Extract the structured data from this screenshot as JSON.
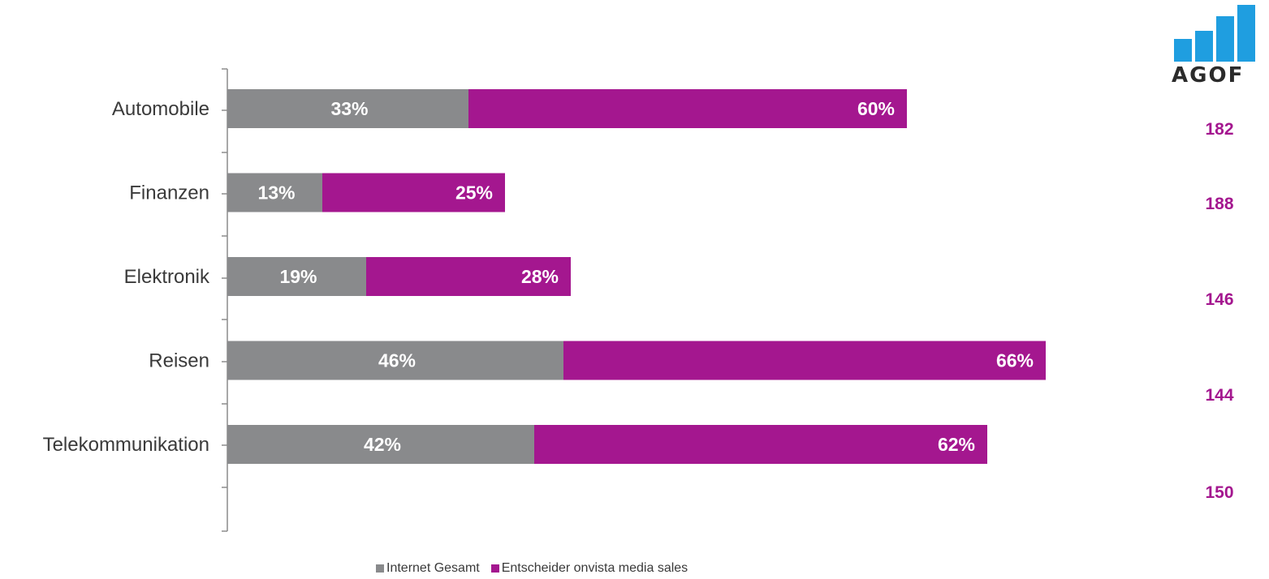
{
  "logo": {
    "text": "AGOF",
    "color": "#1f9ee0"
  },
  "chart_data": {
    "type": "bar",
    "orientation": "horizontal",
    "stacked": true,
    "categories": [
      "Automobile",
      "Finanzen",
      "Elektronik",
      "Reisen",
      "Telekommunikation"
    ],
    "series": [
      {
        "name": "Internet Gesamt",
        "color": "#898a8c",
        "values": [
          33,
          13,
          19,
          46,
          42
        ],
        "labels": [
          "33%",
          "13%",
          "19%",
          "46%",
          "42%"
        ]
      },
      {
        "name": "Entscheider onvista media sales",
        "color": "#a4178f",
        "values": [
          60,
          25,
          28,
          66,
          62
        ],
        "labels": [
          "60%",
          "25%",
          "28%",
          "66%",
          "62%"
        ]
      }
    ],
    "index_values": [
      "182",
      "188",
      "146",
      "144",
      "150"
    ],
    "index_color": "#a4178f",
    "legend_position": "bottom",
    "grid": false
  }
}
